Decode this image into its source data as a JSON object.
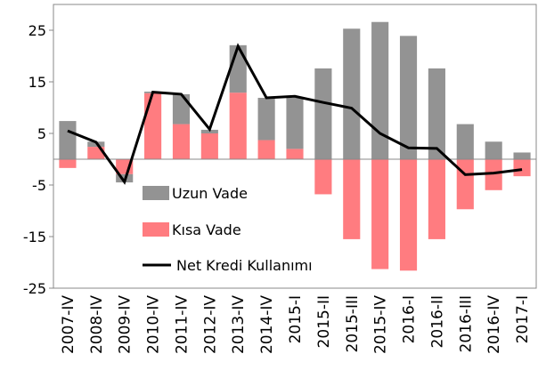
{
  "chart_data": {
    "type": "bar-line",
    "categories": [
      "2007-IV",
      "2008-IV",
      "2009-IV",
      "2010-IV",
      "2011-IV",
      "2012-IV",
      "2013-IV",
      "2014-IV",
      "2015-I",
      "2015-II",
      "2015-III",
      "2015-IV",
      "2016-I",
      "2016-II",
      "2016-III",
      "2016-IV",
      "2017-I"
    ],
    "series": [
      {
        "name": "Uzun Vade",
        "color": "#939393",
        "type": "bar",
        "values": [
          7.4,
          1.0,
          -1.6,
          0.3,
          5.8,
          0.7,
          9.2,
          8.2,
          9.9,
          17.6,
          25.3,
          26.6,
          23.9,
          17.6,
          6.8,
          3.4,
          1.3
        ]
      },
      {
        "name": "Kısa Vade",
        "color": "#ff7c80",
        "type": "bar",
        "values": [
          -1.7,
          2.4,
          -2.9,
          12.8,
          6.8,
          5.0,
          12.9,
          3.7,
          2.0,
          -6.8,
          -15.5,
          -21.3,
          -21.6,
          -15.5,
          -9.7,
          -6.0,
          -3.3
        ]
      },
      {
        "name": "Net Kredi Kullanımı",
        "color": "#000000",
        "type": "line",
        "values": [
          5.5,
          3.3,
          -4.4,
          13.0,
          12.6,
          5.8,
          21.9,
          11.9,
          12.2,
          11.0,
          9.9,
          5.0,
          2.2,
          2.1,
          -3.0,
          -2.7,
          -2.0
        ]
      }
    ],
    "ylim": [
      -25,
      30
    ],
    "yticks": [
      -25,
      -15,
      -5,
      5,
      15,
      25
    ],
    "grid": false,
    "legend": "left"
  }
}
